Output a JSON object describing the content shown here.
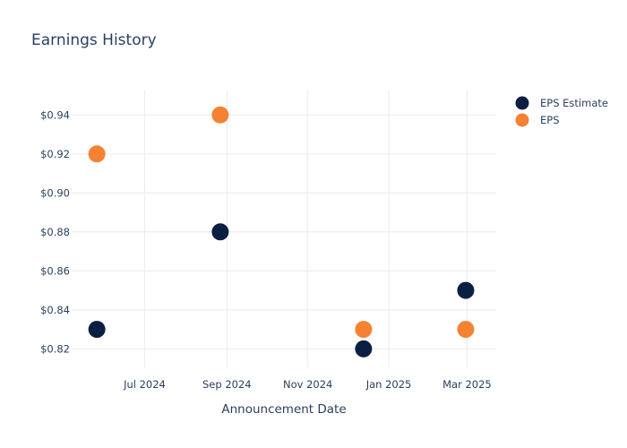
{
  "chart_data": {
    "type": "scatter",
    "title": "Earnings History",
    "xlabel": "Announcement Date",
    "ylabel": "",
    "x_axis": {
      "type": "date",
      "range": [
        "2024-05-07",
        "2025-03-23"
      ],
      "ticks": [
        {
          "date": "2024-07-01",
          "label": "Jul 2024"
        },
        {
          "date": "2024-09-01",
          "label": "Sep 2024"
        },
        {
          "date": "2024-11-01",
          "label": "Nov 2024"
        },
        {
          "date": "2025-01-01",
          "label": "Jan 2025"
        },
        {
          "date": "2025-03-01",
          "label": "Mar 2025"
        }
      ]
    },
    "y_axis": {
      "range": [
        0.8105,
        0.953
      ],
      "ticks": [
        0.82,
        0.84,
        0.86,
        0.88,
        0.9,
        0.92,
        0.94
      ],
      "tick_labels": [
        "$0.82",
        "$0.84",
        "$0.86",
        "$0.88",
        "$0.90",
        "$0.92",
        "$0.94"
      ]
    },
    "grid": true,
    "legend_position": "top-right",
    "series": [
      {
        "name": "EPS Estimate",
        "color": "#0b1f43",
        "points": [
          {
            "x": "2024-05-26",
            "y": 0.83
          },
          {
            "x": "2024-08-27",
            "y": 0.88
          },
          {
            "x": "2024-12-13",
            "y": 0.82
          },
          {
            "x": "2025-02-28",
            "y": 0.85
          }
        ]
      },
      {
        "name": "EPS",
        "color": "#f58233",
        "points": [
          {
            "x": "2024-05-26",
            "y": 0.92
          },
          {
            "x": "2024-08-27",
            "y": 0.94
          },
          {
            "x": "2024-12-13",
            "y": 0.83
          },
          {
            "x": "2025-02-28",
            "y": 0.83
          }
        ]
      }
    ]
  }
}
